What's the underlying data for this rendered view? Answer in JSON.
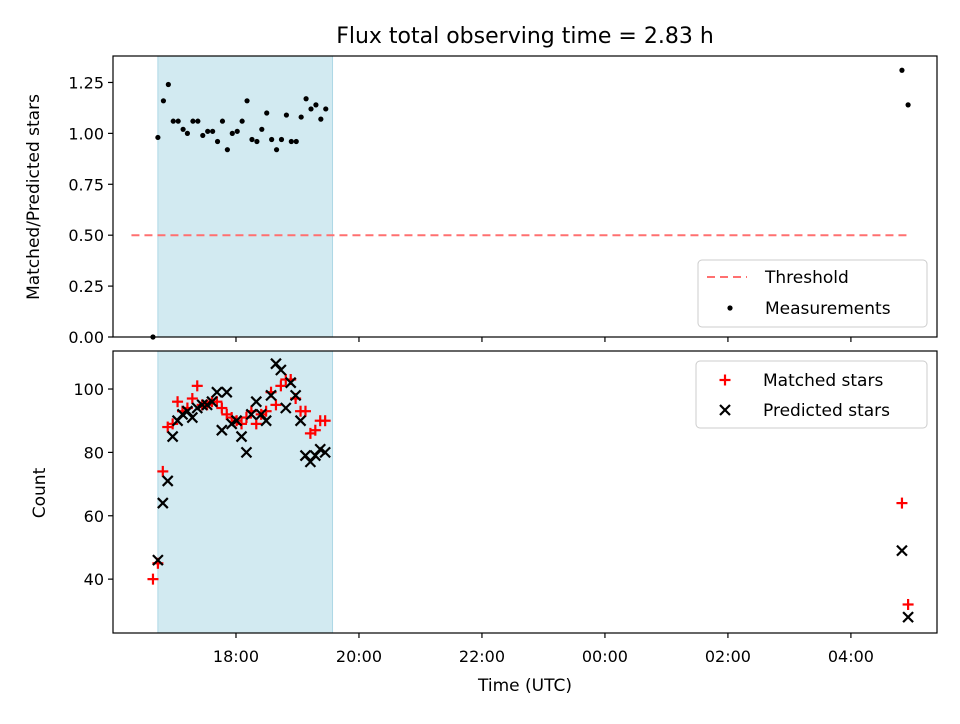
{
  "title": "Flux total observing time = 2.83 h",
  "chart_data": [
    {
      "type": "scatter",
      "ylabel": "Matched/Predicted stars",
      "xlim_hours": [
        16.0,
        29.4
      ],
      "ylim": [
        0.0,
        1.38
      ],
      "yticks": [
        "0.00",
        "0.25",
        "0.50",
        "0.75",
        "1.00",
        "1.25"
      ],
      "shaded_x_hours": [
        16.73,
        19.57
      ],
      "shade_color": "#add8e6",
      "threshold": {
        "name": "Threshold",
        "y": 0.5,
        "x_range_hours": [
          16.3,
          28.95
        ],
        "color": "#ff7070"
      },
      "series": [
        {
          "name": "Measurements",
          "marker": "dot",
          "color": "#000000",
          "points": [
            [
              16.65,
              0.0
            ],
            [
              16.73,
              0.98
            ],
            [
              16.82,
              1.16
            ],
            [
              16.9,
              1.24
            ],
            [
              16.98,
              1.06
            ],
            [
              17.06,
              1.06
            ],
            [
              17.14,
              1.02
            ],
            [
              17.21,
              1.0
            ],
            [
              17.3,
              1.06
            ],
            [
              17.38,
              1.06
            ],
            [
              17.46,
              0.99
            ],
            [
              17.54,
              1.01
            ],
            [
              17.62,
              1.01
            ],
            [
              17.7,
              0.96
            ],
            [
              17.78,
              1.06
            ],
            [
              17.86,
              0.92
            ],
            [
              17.94,
              1.0
            ],
            [
              18.02,
              1.01
            ],
            [
              18.1,
              1.06
            ],
            [
              18.18,
              1.16
            ],
            [
              18.26,
              0.97
            ],
            [
              18.34,
              0.96
            ],
            [
              18.42,
              1.02
            ],
            [
              18.5,
              1.1
            ],
            [
              18.58,
              0.97
            ],
            [
              18.66,
              0.92
            ],
            [
              18.74,
              0.97
            ],
            [
              18.82,
              1.09
            ],
            [
              18.9,
              0.96
            ],
            [
              18.98,
              0.96
            ],
            [
              19.06,
              1.08
            ],
            [
              19.14,
              1.17
            ],
            [
              19.22,
              1.12
            ],
            [
              19.3,
              1.14
            ],
            [
              19.38,
              1.07
            ],
            [
              19.46,
              1.12
            ],
            [
              28.83,
              1.31
            ],
            [
              28.93,
              1.14
            ]
          ]
        }
      ],
      "legend": "lower right"
    },
    {
      "type": "scatter",
      "xlabel": "Time (UTC)",
      "ylabel": "Count",
      "xlim_hours": [
        16.0,
        29.4
      ],
      "ylim": [
        23,
        112
      ],
      "yticks": [
        "40",
        "60",
        "80",
        "100"
      ],
      "xticks": [
        {
          "hour": 18,
          "label": "18:00"
        },
        {
          "hour": 20,
          "label": "20:00"
        },
        {
          "hour": 22,
          "label": "22:00"
        },
        {
          "hour": 24,
          "label": "00:00"
        },
        {
          "hour": 26,
          "label": "02:00"
        },
        {
          "hour": 28,
          "label": "04:00"
        }
      ],
      "shaded_x_hours": [
        16.73,
        19.57
      ],
      "series": [
        {
          "name": "Matched stars",
          "marker": "plus",
          "color": "#ff0000",
          "points": [
            [
              16.65,
              40
            ],
            [
              16.73,
              45
            ],
            [
              16.81,
              74
            ],
            [
              16.89,
              88
            ],
            [
              16.97,
              89
            ],
            [
              17.05,
              96
            ],
            [
              17.13,
              93
            ],
            [
              17.21,
              94
            ],
            [
              17.29,
              97
            ],
            [
              17.37,
              101
            ],
            [
              17.45,
              95
            ],
            [
              17.53,
              95
            ],
            [
              17.61,
              96
            ],
            [
              17.69,
              96
            ],
            [
              17.77,
              94
            ],
            [
              17.85,
              92
            ],
            [
              17.93,
              91
            ],
            [
              18.01,
              90
            ],
            [
              18.09,
              89
            ],
            [
              18.17,
              91
            ],
            [
              18.25,
              93
            ],
            [
              18.33,
              89
            ],
            [
              18.41,
              92
            ],
            [
              18.49,
              93
            ],
            [
              18.57,
              99
            ],
            [
              18.65,
              95
            ],
            [
              18.73,
              101
            ],
            [
              18.81,
              103
            ],
            [
              18.89,
              103
            ],
            [
              18.97,
              97
            ],
            [
              19.05,
              93
            ],
            [
              19.13,
              93
            ],
            [
              19.21,
              86
            ],
            [
              19.29,
              87
            ],
            [
              19.37,
              90
            ],
            [
              19.45,
              90
            ],
            [
              28.83,
              64
            ],
            [
              28.93,
              32
            ]
          ]
        },
        {
          "name": "Predicted stars",
          "marker": "x",
          "color": "#000000",
          "points": [
            [
              16.73,
              46
            ],
            [
              16.81,
              64
            ],
            [
              16.89,
              71
            ],
            [
              16.97,
              85
            ],
            [
              17.05,
              90
            ],
            [
              17.13,
              92
            ],
            [
              17.21,
              93
            ],
            [
              17.29,
              91
            ],
            [
              17.37,
              94
            ],
            [
              17.45,
              95
            ],
            [
              17.53,
              95
            ],
            [
              17.61,
              96
            ],
            [
              17.69,
              99
            ],
            [
              17.77,
              87
            ],
            [
              17.85,
              99
            ],
            [
              17.93,
              89
            ],
            [
              18.01,
              90
            ],
            [
              18.09,
              85
            ],
            [
              18.17,
              80
            ],
            [
              18.25,
              92
            ],
            [
              18.33,
              96
            ],
            [
              18.41,
              92
            ],
            [
              18.49,
              90
            ],
            [
              18.57,
              98
            ],
            [
              18.65,
              108
            ],
            [
              18.73,
              106
            ],
            [
              18.81,
              94
            ],
            [
              18.89,
              102
            ],
            [
              18.97,
              98
            ],
            [
              19.05,
              90
            ],
            [
              19.13,
              79
            ],
            [
              19.21,
              77
            ],
            [
              19.29,
              79
            ],
            [
              19.37,
              81
            ],
            [
              19.45,
              80
            ],
            [
              28.83,
              49
            ],
            [
              28.93,
              28
            ]
          ]
        }
      ],
      "legend": "upper right"
    }
  ]
}
